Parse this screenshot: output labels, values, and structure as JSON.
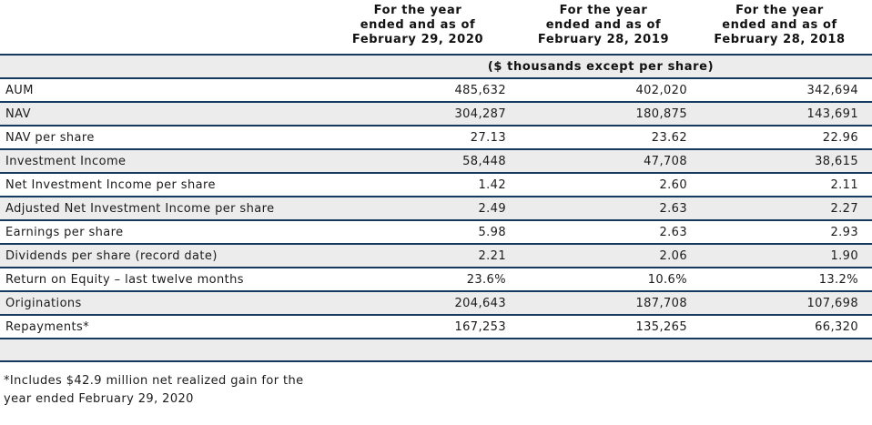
{
  "table": {
    "column_headers": [
      "For the year\nended and as of\nFebruary 29, 2020",
      "For the year\nended and as of\nFebruary 28, 2019",
      "For the year\nended and as of\nFebruary 28, 2018"
    ],
    "units_note": "($ thousands except per share)",
    "rows": [
      {
        "label": "AUM",
        "values": [
          "485,632",
          "402,020",
          "342,694"
        ]
      },
      {
        "label": "NAV",
        "values": [
          "304,287",
          "180,875",
          "143,691"
        ]
      },
      {
        "label": "NAV per share",
        "values": [
          "27.13",
          "23.62",
          "22.96"
        ]
      },
      {
        "label": "Investment Income",
        "values": [
          "58,448",
          "47,708",
          "38,615"
        ]
      },
      {
        "label": "Net Investment Income per share",
        "values": [
          "1.42",
          "2.60",
          "2.11"
        ]
      },
      {
        "label": "Adjusted Net Investment Income per share",
        "values": [
          "2.49",
          "2.63",
          "2.27"
        ]
      },
      {
        "label": "Earnings per share",
        "values": [
          "5.98",
          "2.63",
          "2.93"
        ]
      },
      {
        "label": "Dividends per share (record date)",
        "values": [
          "2.21",
          "2.06",
          "1.90"
        ]
      },
      {
        "label": "Return on Equity – last twelve months",
        "values": [
          "23.6%",
          "10.6%",
          "13.2%"
        ]
      },
      {
        "label": "Originations",
        "values": [
          "204,643",
          "187,708",
          "107,698"
        ]
      },
      {
        "label": "Repayments*",
        "values": [
          "167,253",
          "135,265",
          "66,320"
        ]
      }
    ],
    "footnote": "*Includes $42.9 million net realized gain for the\nyear ended February 29, 2020"
  },
  "colors": {
    "rule": "#15395f",
    "row_stripe": "#ececec",
    "text": "#1b1b1b"
  }
}
